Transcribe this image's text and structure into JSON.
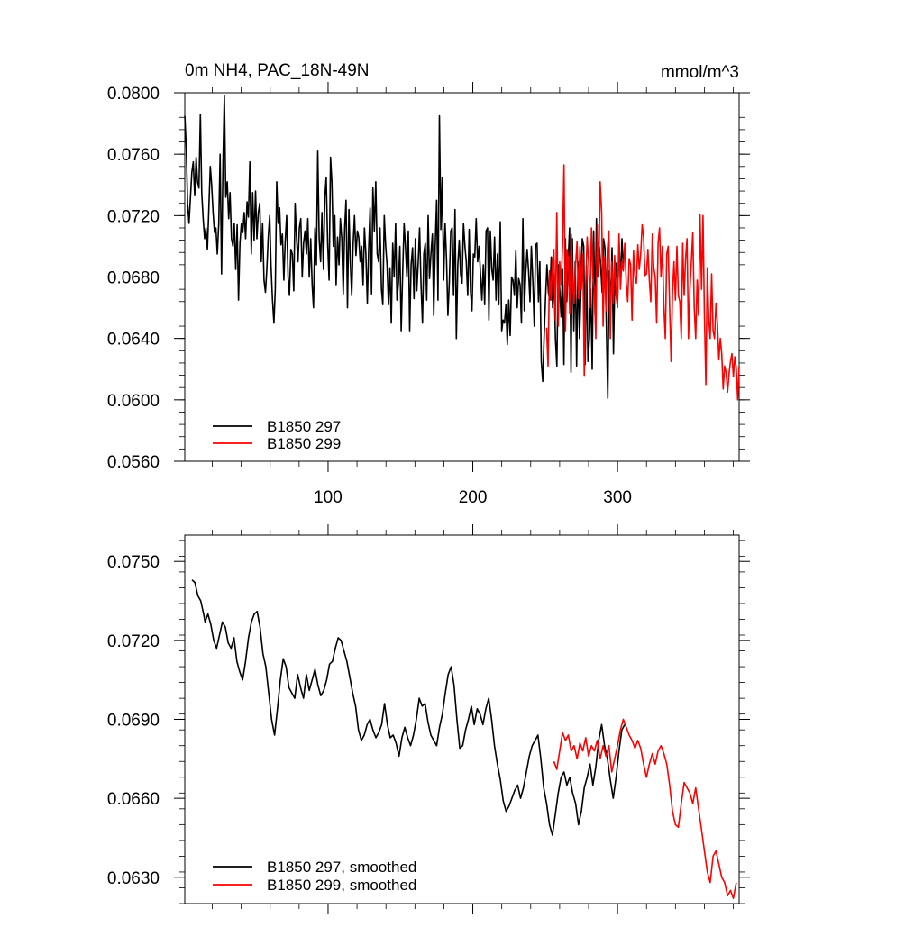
{
  "chart_data": [
    {
      "type": "line",
      "title": "0m NH4, PAC_18N-49N",
      "units_label": "mmol/m^3",
      "xlim": [
        1,
        384
      ],
      "ylim": [
        0.056,
        0.08
      ],
      "x_ticks": [
        100,
        200,
        300
      ],
      "x_tick_labels": [
        "100",
        "200",
        "300"
      ],
      "y_ticks": [
        0.056,
        0.06,
        0.064,
        0.068,
        0.072,
        0.076,
        0.08
      ],
      "y_tick_labels": [
        "0.0560",
        "0.0600",
        "0.0640",
        "0.0680",
        "0.0720",
        "0.0760",
        "0.0800"
      ],
      "legend_placement": "bottom-left",
      "grid": false,
      "series": [
        {
          "name": "B1850 297",
          "color": "#000000",
          "x_range": [
            1,
            304
          ],
          "values": [
            0.0785,
            0.0765,
            0.0728,
            0.0715,
            0.0732,
            0.0748,
            0.0755,
            0.0733,
            0.0758,
            0.0742,
            0.0738,
            0.0786,
            0.0735,
            0.0718,
            0.0705,
            0.0712,
            0.0698,
            0.0725,
            0.0752,
            0.074,
            0.0722,
            0.0709,
            0.0712,
            0.0695,
            0.0715,
            0.076,
            0.0682,
            0.0755,
            0.0798,
            0.0732,
            0.0742,
            0.0718,
            0.0735,
            0.0705,
            0.07,
            0.0715,
            0.0685,
            0.0714,
            0.0665,
            0.0702,
            0.0715,
            0.0709,
            0.0722,
            0.0705,
            0.0729,
            0.0719,
            0.0755,
            0.0695,
            0.0735,
            0.0704,
            0.0736,
            0.0705,
            0.0722,
            0.0728,
            0.069,
            0.0715,
            0.0678,
            0.067,
            0.0685,
            0.0706,
            0.072,
            0.0687,
            0.0665,
            0.065,
            0.0672,
            0.0742,
            0.0715,
            0.0725,
            0.0701,
            0.0708,
            0.0678,
            0.0703,
            0.072,
            0.068,
            0.0668,
            0.0698,
            0.0695,
            0.0671,
            0.0728,
            0.0705,
            0.069,
            0.0712,
            0.0718,
            0.068,
            0.0702,
            0.071,
            0.0695,
            0.0718,
            0.068,
            0.0705,
            0.0675,
            0.066,
            0.0712,
            0.0688,
            0.0762,
            0.0705,
            0.069,
            0.0722,
            0.0685,
            0.0732,
            0.0745,
            0.0702,
            0.0678,
            0.0758,
            0.0742,
            0.07,
            0.072,
            0.0675,
            0.0706,
            0.0688,
            0.0718,
            0.0705,
            0.0669,
            0.0712,
            0.073,
            0.066,
            0.0724,
            0.069,
            0.0668,
            0.0702,
            0.072,
            0.0694,
            0.071,
            0.0706,
            0.069,
            0.07,
            0.0675,
            0.0712,
            0.0695,
            0.0663,
            0.0698,
            0.0725,
            0.0669,
            0.0738,
            0.071,
            0.0742,
            0.0695,
            0.069,
            0.0712,
            0.0672,
            0.0662,
            0.072,
            0.07,
            0.0688,
            0.0662,
            0.0686,
            0.065,
            0.0702,
            0.068,
            0.0715,
            0.0665,
            0.0676,
            0.07,
            0.0645,
            0.0682,
            0.0715,
            0.07,
            0.068,
            0.071,
            0.0645,
            0.0688,
            0.0699,
            0.0666,
            0.0705,
            0.0671,
            0.069,
            0.0712,
            0.0675,
            0.065,
            0.0695,
            0.0702,
            0.0665,
            0.072,
            0.0679,
            0.0695,
            0.0708,
            0.0655,
            0.07,
            0.073,
            0.0665,
            0.0785,
            0.0711,
            0.0745,
            0.0678,
            0.0715,
            0.0691,
            0.0655,
            0.0677,
            0.071,
            0.0712,
            0.0668,
            0.0724,
            0.064,
            0.0688,
            0.0704,
            0.0682,
            0.0676,
            0.0715,
            0.07,
            0.069,
            0.0668,
            0.0711,
            0.0671,
            0.0658,
            0.0695,
            0.0693,
            0.0718,
            0.069,
            0.07,
            0.0683,
            0.0665,
            0.0688,
            0.0662,
            0.071,
            0.0712,
            0.0652,
            0.071,
            0.0685,
            0.0678,
            0.0706,
            0.0665,
            0.0695,
            0.0662,
            0.0716,
            0.0645,
            0.0652,
            0.065,
            0.0662,
            0.0636,
            0.0665,
            0.0642,
            0.068,
            0.0678,
            0.0668,
            0.0697,
            0.066,
            0.0679,
            0.0675,
            0.065,
            0.0718,
            0.0658,
            0.0682,
            0.0698,
            0.0684,
            0.0664,
            0.07,
            0.0678,
            0.0648,
            0.0701,
            0.0702,
            0.0664,
            0.069,
            0.0625,
            0.0612,
            0.064,
            0.0666,
            0.0688,
            0.067,
            0.0665,
            0.0693,
            0.066,
            0.0682,
            0.064,
            0.0622,
            0.0688,
            0.0672,
            0.0654,
            0.0685,
            0.0623,
            0.0705,
            0.0664,
            0.069,
            0.0712,
            0.0618,
            0.0705,
            0.0645,
            0.069,
            0.0622,
            0.069,
            0.064,
            0.0671,
            0.0705,
            0.07,
            0.0623,
            0.0688,
            0.0625,
            0.064,
            0.0672,
            0.062,
            0.071,
            0.0655,
            0.0718,
            0.068,
            0.07,
            0.0688,
            0.067,
            0.0705,
            0.0699,
            0.0648,
            0.0601,
            0.0684,
            0.0664,
            0.0699,
            0.063,
            0.068,
            0.0689,
            0.0668,
            0.0702,
            0.0678,
            0.0705,
            0.0687
          ]
        },
        {
          "name": "B1850 299",
          "color": "#ff0000",
          "x_range": [
            251,
            384
          ],
          "values": [
            0.0647,
            0.0622,
            0.0684,
            0.0665,
            0.069,
            0.0698,
            0.0652,
            0.0722,
            0.0648,
            0.069,
            0.0675,
            0.07,
            0.0753,
            0.0645,
            0.0698,
            0.0692,
            0.0656,
            0.0708,
            0.0674,
            0.0663,
            0.0688,
            0.0703,
            0.0666,
            0.07,
            0.0672,
            0.0695,
            0.0616,
            0.0675,
            0.0706,
            0.069,
            0.066,
            0.0712,
            0.068,
            0.0672,
            0.064,
            0.0714,
            0.068,
            0.0742,
            0.0722,
            0.0648,
            0.0693,
            0.0658,
            0.0698,
            0.071,
            0.064,
            0.069,
            0.0663,
            0.0694,
            0.0668,
            0.066,
            0.0708,
            0.0672,
            0.069,
            0.0684,
            0.0702,
            0.0676,
            0.0664,
            0.0692,
            0.0688,
            0.0652,
            0.0697,
            0.068,
            0.0676,
            0.0701,
            0.0685,
            0.0695,
            0.0714,
            0.0706,
            0.0681,
            0.0682,
            0.0698,
            0.0678,
            0.0664,
            0.0708,
            0.0686,
            0.068,
            0.065,
            0.0702,
            0.0712,
            0.068,
            0.07,
            0.066,
            0.064,
            0.0695,
            0.07,
            0.066,
            0.0625,
            0.067,
            0.069,
            0.0665,
            0.07,
            0.0668,
            0.0664,
            0.064,
            0.0702,
            0.0668,
            0.0692,
            0.0705,
            0.064,
            0.0672,
            0.069,
            0.0709,
            0.066,
            0.064,
            0.0678,
            0.0655,
            0.0721,
            0.0672,
            0.072,
            0.0655,
            0.061,
            0.0686,
            0.0653,
            0.064,
            0.0682,
            0.0645,
            0.064,
            0.0663,
            0.065,
            0.0626,
            0.064,
            0.063,
            0.0607,
            0.0622,
            0.0618,
            0.0605,
            0.0617,
            0.0625,
            0.063,
            0.0615,
            0.0628,
            0.0621,
            0.06,
            0.0622
          ]
        }
      ]
    },
    {
      "type": "line",
      "title": "",
      "xlim": [
        1,
        384
      ],
      "ylim": [
        0.062,
        0.076
      ],
      "x_ticks": [
        100,
        200,
        300
      ],
      "y_ticks": [
        0.063,
        0.066,
        0.069,
        0.072,
        0.075
      ],
      "y_tick_labels": [
        "0.0630",
        "0.0660",
        "0.0690",
        "0.0720",
        "0.0750"
      ],
      "legend_placement": "bottom-left",
      "grid": false,
      "series": [
        {
          "name": "B1850 297, smoothed",
          "color": "#000000",
          "x": [
            6,
            8,
            10,
            12,
            14,
            15,
            17,
            19,
            21,
            23,
            25,
            27,
            29,
            31,
            33,
            35,
            37,
            39,
            41,
            43,
            45,
            47,
            49,
            51,
            53,
            55,
            57,
            59,
            61,
            63,
            65,
            67,
            69,
            71,
            73,
            75,
            77,
            79,
            81,
            83,
            85,
            87,
            89,
            91,
            93,
            95,
            97,
            99,
            101,
            103,
            105,
            107,
            109,
            111,
            113,
            115,
            117,
            119,
            121,
            123,
            125,
            127,
            129,
            131,
            133,
            135,
            137,
            139,
            141,
            143,
            145,
            147,
            149,
            151,
            153,
            155,
            157,
            159,
            161,
            163,
            165,
            167,
            169,
            171,
            173,
            175,
            177,
            179,
            181,
            183,
            185,
            187,
            189,
            191,
            193,
            195,
            197,
            199,
            201,
            203,
            205,
            207,
            209,
            211,
            213,
            215,
            217,
            219,
            221,
            223,
            225,
            227,
            229,
            231,
            233,
            235,
            237,
            239,
            241,
            243,
            245,
            247,
            249,
            251,
            253,
            255,
            257,
            259,
            261,
            263,
            265,
            267,
            269,
            271,
            273,
            275,
            277,
            279,
            281,
            283,
            285,
            287,
            289,
            291,
            293,
            295,
            297,
            299,
            301,
            303,
            305
          ],
          "values": [
            0.0743,
            0.0742,
            0.0737,
            0.0735,
            0.073,
            0.0727,
            0.073,
            0.0726,
            0.072,
            0.0717,
            0.0722,
            0.0727,
            0.0725,
            0.0719,
            0.0717,
            0.0721,
            0.0712,
            0.0708,
            0.0705,
            0.0712,
            0.0721,
            0.0727,
            0.073,
            0.0731,
            0.0725,
            0.0715,
            0.071,
            0.07,
            0.069,
            0.0684,
            0.0694,
            0.0705,
            0.0713,
            0.071,
            0.0702,
            0.07,
            0.0698,
            0.0707,
            0.0702,
            0.0698,
            0.0707,
            0.0701,
            0.0705,
            0.0709,
            0.0703,
            0.0699,
            0.0701,
            0.0705,
            0.0711,
            0.0712,
            0.0717,
            0.0721,
            0.072,
            0.0716,
            0.0712,
            0.0706,
            0.07,
            0.0695,
            0.0686,
            0.0682,
            0.0684,
            0.0688,
            0.069,
            0.0686,
            0.0683,
            0.0685,
            0.0688,
            0.0696,
            0.0688,
            0.0683,
            0.0684,
            0.0681,
            0.0676,
            0.0683,
            0.0687,
            0.0683,
            0.068,
            0.0684,
            0.069,
            0.0698,
            0.0695,
            0.0696,
            0.0689,
            0.0684,
            0.0682,
            0.068,
            0.0687,
            0.0692,
            0.07,
            0.0707,
            0.071,
            0.0703,
            0.069,
            0.0679,
            0.068,
            0.0686,
            0.069,
            0.0695,
            0.0688,
            0.0694,
            0.0692,
            0.0688,
            0.0694,
            0.0698,
            0.069,
            0.068,
            0.0673,
            0.0667,
            0.0659,
            0.0655,
            0.0657,
            0.066,
            0.0663,
            0.0665,
            0.066,
            0.0664,
            0.067,
            0.0676,
            0.068,
            0.0682,
            0.0684,
            0.0675,
            0.0664,
            0.0658,
            0.065,
            0.0646,
            0.0654,
            0.0662,
            0.0668,
            0.067,
            0.0665,
            0.0668,
            0.0662,
            0.0658,
            0.065,
            0.0655,
            0.0664,
            0.0668,
            0.0673,
            0.0665,
            0.0672,
            0.0682,
            0.0688,
            0.068,
            0.0675,
            0.0667,
            0.066,
            0.0668,
            0.0678,
            0.0686,
            0.0688
          ]
        },
        {
          "name": "B1850 299, smoothed",
          "color": "#ff0000",
          "x": [
            256,
            258,
            260,
            262,
            264,
            266,
            268,
            270,
            272,
            274,
            276,
            278,
            280,
            282,
            284,
            286,
            288,
            290,
            292,
            294,
            296,
            298,
            300,
            302,
            304,
            306,
            308,
            310,
            312,
            314,
            316,
            318,
            320,
            322,
            324,
            326,
            328,
            330,
            332,
            334,
            336,
            338,
            340,
            342,
            344,
            346,
            348,
            350,
            352,
            354,
            356,
            358,
            360,
            362,
            364,
            366,
            368,
            370,
            372,
            374,
            376,
            378,
            380,
            382
          ],
          "values": [
            0.0674,
            0.0671,
            0.0678,
            0.0685,
            0.0682,
            0.0684,
            0.0678,
            0.068,
            0.0675,
            0.0681,
            0.0678,
            0.0683,
            0.0676,
            0.068,
            0.0678,
            0.0682,
            0.0675,
            0.068,
            0.0676,
            0.068,
            0.067,
            0.0675,
            0.068,
            0.0686,
            0.069,
            0.0687,
            0.0684,
            0.0682,
            0.0679,
            0.0682,
            0.0679,
            0.0673,
            0.0668,
            0.0673,
            0.0677,
            0.0673,
            0.0678,
            0.068,
            0.0677,
            0.0673,
            0.0665,
            0.0655,
            0.065,
            0.0649,
            0.0658,
            0.0666,
            0.0664,
            0.0662,
            0.0658,
            0.0664,
            0.0656,
            0.0648,
            0.064,
            0.0632,
            0.0628,
            0.0638,
            0.064,
            0.0635,
            0.063,
            0.0628,
            0.0623,
            0.0625,
            0.0622,
            0.0628
          ]
        }
      ]
    }
  ]
}
